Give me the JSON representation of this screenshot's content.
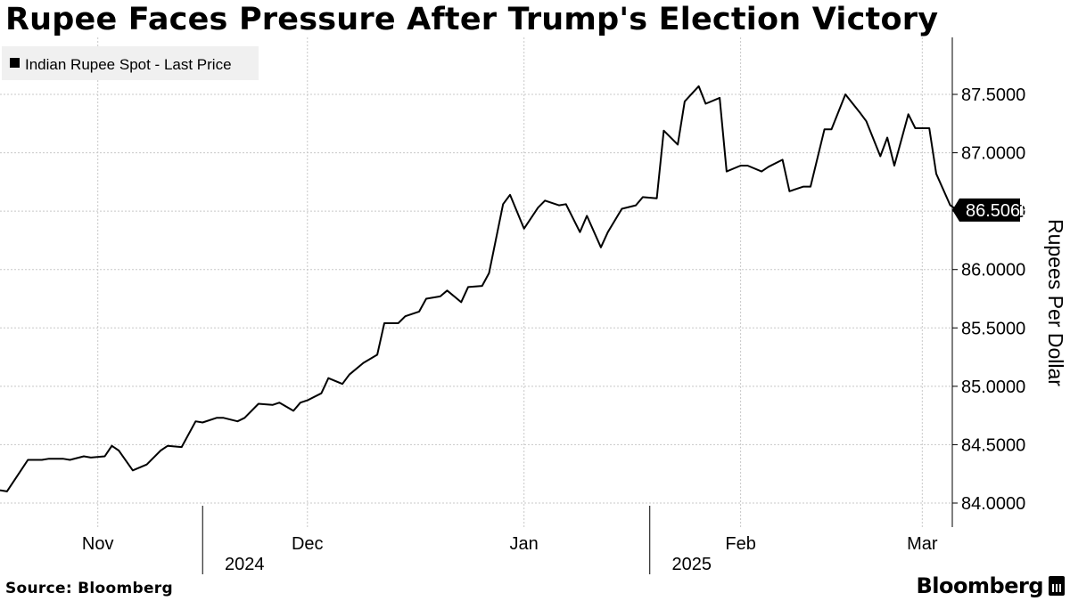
{
  "chart_data": {
    "type": "line",
    "title": "Rupee Faces Pressure After Trump's Election Victory",
    "legend": {
      "placement": "top-left",
      "entries": [
        "Indian Rupee Spot - Last Price"
      ]
    },
    "ylabel": "Rupees Per Dollar",
    "ylim": [
      83.8,
      88.0
    ],
    "y_ticks": [
      "84.0000",
      "84.5000",
      "85.0000",
      "85.5000",
      "86.0000",
      "86.5000",
      "87.0000",
      "87.5000"
    ],
    "y_tick_values": [
      84.0,
      84.5,
      85.0,
      85.5,
      86.0,
      86.5,
      87.0,
      87.5
    ],
    "x_range": [
      "2024-10-24",
      "2025-03-07"
    ],
    "x_ticks": [
      {
        "label": "Nov",
        "date": "2024-11-07"
      },
      {
        "label": "Dec",
        "date": "2024-12-07"
      },
      {
        "label": "Jan",
        "date": "2025-01-07"
      },
      {
        "label": "Feb",
        "date": "2025-02-07"
      },
      {
        "label": "Mar",
        "date": "2025-03-05"
      }
    ],
    "year_labels": [
      {
        "label": "2024",
        "date": "2024-11-28"
      },
      {
        "label": "2025",
        "date": "2025-01-31"
      }
    ],
    "year_dividers": [
      "2024-11-22",
      "2025-01-25"
    ],
    "grid": true,
    "last_value_label": "86.5063",
    "series": [
      {
        "name": "Indian Rupee Spot - Last Price",
        "color": "#000000",
        "points": [
          [
            "2024-10-24",
            84.11
          ],
          [
            "2024-10-25",
            84.1
          ],
          [
            "2024-10-27",
            84.28
          ],
          [
            "2024-10-28",
            84.37
          ],
          [
            "2024-10-30",
            84.37
          ],
          [
            "2024-10-31",
            84.38
          ],
          [
            "2024-11-02",
            84.38
          ],
          [
            "2024-11-03",
            84.37
          ],
          [
            "2024-11-05",
            84.4
          ],
          [
            "2024-11-06",
            84.39
          ],
          [
            "2024-11-08",
            84.4
          ],
          [
            "2024-11-09",
            84.49
          ],
          [
            "2024-11-10",
            84.45
          ],
          [
            "2024-11-12",
            84.28
          ],
          [
            "2024-11-14",
            84.33
          ],
          [
            "2024-11-16",
            84.45
          ],
          [
            "2024-11-17",
            84.49
          ],
          [
            "2024-11-19",
            84.48
          ],
          [
            "2024-11-21",
            84.7
          ],
          [
            "2024-11-22",
            84.69
          ],
          [
            "2024-11-24",
            84.73
          ],
          [
            "2024-11-25",
            84.73
          ],
          [
            "2024-11-27",
            84.7
          ],
          [
            "2024-11-28",
            84.73
          ],
          [
            "2024-11-30",
            84.85
          ],
          [
            "2024-12-02",
            84.84
          ],
          [
            "2024-12-03",
            84.86
          ],
          [
            "2024-12-05",
            84.79
          ],
          [
            "2024-12-06",
            84.86
          ],
          [
            "2024-12-07",
            84.88
          ],
          [
            "2024-12-09",
            84.94
          ],
          [
            "2024-12-10",
            85.07
          ],
          [
            "2024-12-12",
            85.02
          ],
          [
            "2024-12-13",
            85.1
          ],
          [
            "2024-12-15",
            85.2
          ],
          [
            "2024-12-17",
            85.27
          ],
          [
            "2024-12-18",
            85.54
          ],
          [
            "2024-12-20",
            85.54
          ],
          [
            "2024-12-21",
            85.6
          ],
          [
            "2024-12-23",
            85.64
          ],
          [
            "2024-12-24",
            85.75
          ],
          [
            "2024-12-26",
            85.77
          ],
          [
            "2024-12-27",
            85.82
          ],
          [
            "2024-12-29",
            85.72
          ],
          [
            "2024-12-30",
            85.85
          ],
          [
            "2025-01-01",
            85.86
          ],
          [
            "2025-01-02",
            85.97
          ],
          [
            "2025-01-04",
            86.56
          ],
          [
            "2025-01-05",
            86.64
          ],
          [
            "2025-01-07",
            86.35
          ],
          [
            "2025-01-09",
            86.53
          ],
          [
            "2025-01-10",
            86.59
          ],
          [
            "2025-01-12",
            86.55
          ],
          [
            "2025-01-13",
            86.56
          ],
          [
            "2025-01-15",
            86.32
          ],
          [
            "2025-01-16",
            86.46
          ],
          [
            "2025-01-18",
            86.19
          ],
          [
            "2025-01-19",
            86.32
          ],
          [
            "2025-01-21",
            86.52
          ],
          [
            "2025-01-23",
            86.55
          ],
          [
            "2025-01-24",
            86.62
          ],
          [
            "2025-01-26",
            86.61
          ],
          [
            "2025-01-27",
            87.19
          ],
          [
            "2025-01-29",
            87.07
          ],
          [
            "2025-01-30",
            87.44
          ],
          [
            "2025-02-01",
            87.57
          ],
          [
            "2025-02-02",
            87.42
          ],
          [
            "2025-02-04",
            87.47
          ],
          [
            "2025-02-05",
            86.84
          ],
          [
            "2025-02-07",
            86.89
          ],
          [
            "2025-02-08",
            86.89
          ],
          [
            "2025-02-10",
            86.84
          ],
          [
            "2025-02-11",
            86.88
          ],
          [
            "2025-02-13",
            86.94
          ],
          [
            "2025-02-14",
            86.67
          ],
          [
            "2025-02-16",
            86.71
          ],
          [
            "2025-02-17",
            86.71
          ],
          [
            "2025-02-19",
            87.2
          ],
          [
            "2025-02-20",
            87.2
          ],
          [
            "2025-02-22",
            87.5
          ],
          [
            "2025-02-24",
            87.35
          ],
          [
            "2025-02-25",
            87.27
          ],
          [
            "2025-02-27",
            86.97
          ],
          [
            "2025-02-28",
            87.13
          ],
          [
            "2025-03-01",
            86.89
          ],
          [
            "2025-03-03",
            87.33
          ],
          [
            "2025-03-04",
            87.21
          ],
          [
            "2025-03-06",
            87.21
          ],
          [
            "2025-03-07",
            86.82
          ],
          [
            "2025-03-09",
            86.55
          ],
          [
            "2025-03-10",
            86.51
          ]
        ]
      }
    ]
  },
  "footer": {
    "source": "Source: Bloomberg",
    "brand": "Bloomberg"
  }
}
